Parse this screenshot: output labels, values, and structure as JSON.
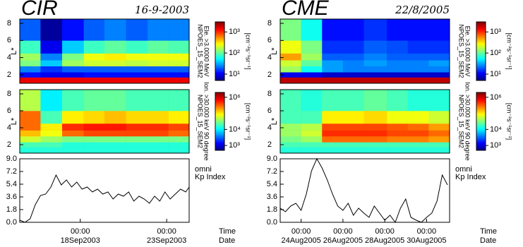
{
  "chart_data": [
    {
      "type": "heatmap",
      "title": "CIR",
      "subtitle": "16-9-2003",
      "ylabel": "L*",
      "colorbar_label": [
        "NPOES_15_SEM2",
        "Ele. >3.0000 MeV"
      ],
      "units": "[cm⁻²s⁻¹sr⁻¹]",
      "xbins": [
        14.5,
        15.7,
        16.95,
        18.2,
        19.4,
        20.65,
        21.9,
        23.1,
        24.3
      ],
      "ybins": [
        1,
        1.7,
        2.3,
        3,
        3.7,
        4.5,
        6,
        8.5
      ],
      "ylim": [
        1,
        8.5
      ],
      "yticks": [
        2,
        4,
        6,
        8
      ],
      "zlim": [
        5,
        3000
      ],
      "zscale": "log",
      "zticks": [
        {
          "value": 10,
          "label": "10¹"
        },
        {
          "value": 100,
          "label": "10²"
        },
        {
          "value": 1000,
          "label": "10³"
        }
      ],
      "z": [
        [
          1500,
          1500,
          1500,
          1500,
          1500,
          1500,
          1500,
          1500
        ],
        [
          12,
          10,
          10,
          12,
          12,
          12,
          12,
          12
        ],
        [
          25,
          15,
          20,
          20,
          20,
          20,
          20,
          20
        ],
        [
          120,
          40,
          150,
          200,
          200,
          180,
          200,
          200
        ],
        [
          150,
          25,
          120,
          250,
          300,
          250,
          250,
          250
        ],
        [
          80,
          10,
          40,
          80,
          100,
          80,
          100,
          90
        ],
        [
          20,
          6,
          12,
          20,
          25,
          20,
          25,
          25
        ]
      ]
    },
    {
      "type": "heatmap",
      "ylabel": "L*",
      "colorbar_label": [
        "NPOES_15_SEM2",
        "Ion. >30.000 keV 90 degree"
      ],
      "units": "[cm⁻²s⁻¹sr⁻¹]",
      "xbins": [
        14.5,
        15.7,
        16.95,
        18.2,
        19.4,
        20.65,
        21.9,
        23.1,
        24.3
      ],
      "ybins": [
        1,
        1.7,
        2.3,
        3,
        3.7,
        4.5,
        6,
        8.5
      ],
      "ylim": [
        1,
        8.5
      ],
      "yticks": [
        2,
        4,
        6,
        8
      ],
      "zlim": [
        500,
        2000000
      ],
      "zscale": "log",
      "zticks": [
        {
          "value": 1000,
          "label": "10³"
        },
        {
          "value": 10000,
          "label": "10⁴"
        },
        {
          "value": 1000000,
          "label": "10⁶"
        }
      ],
      "z": [
        [
          15000,
          15000,
          15000,
          15000,
          15000,
          15000,
          15000,
          15000
        ],
        [
          20000,
          20000,
          15000,
          15000,
          15000,
          15000,
          15000,
          15000
        ],
        [
          60000,
          40000,
          30000,
          30000,
          30000,
          30000,
          30000,
          30000
        ],
        [
          150000,
          80000,
          300000,
          400000,
          400000,
          400000,
          400000,
          300000
        ],
        [
          300000,
          100000,
          500000,
          600000,
          600000,
          500000,
          500000,
          400000
        ],
        [
          300000,
          20000,
          100000,
          120000,
          150000,
          120000,
          120000,
          100000
        ],
        [
          50000,
          10000,
          20000,
          25000,
          25000,
          20000,
          20000,
          20000
        ]
      ]
    },
    {
      "type": "line",
      "annotations": [
        "omni",
        "Kp Index"
      ],
      "xlabel": [
        "Time",
        "Date"
      ],
      "xtick_time": "00:00",
      "xlim": [
        14.5,
        24.3
      ],
      "xticks": [
        {
          "value": 18,
          "label": "18Sep2003"
        },
        {
          "value": 23,
          "label": "23Sep2003"
        }
      ],
      "ylim": [
        0,
        9
      ],
      "yticks": [
        {
          "value": 0,
          "label": "0.0"
        },
        {
          "value": 1.8,
          "label": "1.8"
        },
        {
          "value": 3.6,
          "label": "3.6"
        },
        {
          "value": 5.4,
          "label": "5.4"
        },
        {
          "value": 7.2,
          "label": "7.2"
        },
        {
          "value": 9,
          "label": "9.0"
        }
      ],
      "color": "#000000",
      "x": [
        14.5,
        14.8,
        15.1,
        15.4,
        15.7,
        16.0,
        16.3,
        16.6,
        16.9,
        17.2,
        17.5,
        17.8,
        18.1,
        18.4,
        18.7,
        19.0,
        19.3,
        19.6,
        19.9,
        20.2,
        20.5,
        20.8,
        21.1,
        21.4,
        21.7,
        22.0,
        22.3,
        22.6,
        22.9,
        23.2,
        23.5,
        23.8,
        24.1,
        24.3
      ],
      "values": [
        0.3,
        0.0,
        0.5,
        2.5,
        3.8,
        4.0,
        5.0,
        6.7,
        5.3,
        6.0,
        5.0,
        5.7,
        4.7,
        5.0,
        4.3,
        4.7,
        4.0,
        4.3,
        3.3,
        4.0,
        3.7,
        4.3,
        3.0,
        3.7,
        3.3,
        2.7,
        3.7,
        3.0,
        4.3,
        3.3,
        4.0,
        4.7,
        4.3,
        5.0
      ]
    },
    {
      "type": "heatmap",
      "title": "CME",
      "subtitle": "22/8/2005",
      "ylabel": "L*",
      "colorbar_label": [
        "NPOES_15_SEM2",
        "Ele. >3.0000 MeV"
      ],
      "units": "[cm⁻²s⁻¹sr⁻¹]",
      "xbins": [
        23,
        24,
        25,
        26,
        27,
        28.1,
        29.1,
        30.1,
        31.1
      ],
      "ybins": [
        1,
        1.7,
        2.3,
        3,
        3.7,
        4.5,
        6,
        8.5
      ],
      "ylim": [
        1,
        8.5
      ],
      "yticks": [
        2,
        4,
        6,
        8
      ],
      "zlim": [
        5,
        3000
      ],
      "zscale": "log",
      "zticks": [
        {
          "value": 10,
          "label": "10¹"
        },
        {
          "value": 100,
          "label": "10²"
        },
        {
          "value": 1000,
          "label": "10³"
        }
      ],
      "z": [
        [
          2000,
          2000,
          2000,
          2000,
          2000,
          2000,
          2000,
          2000
        ],
        [
          10,
          10,
          8,
          8,
          8,
          8,
          8,
          8
        ],
        [
          150,
          60,
          30,
          25,
          25,
          25,
          25,
          25
        ],
        [
          200,
          100,
          30,
          25,
          30,
          25,
          25,
          30
        ],
        [
          500,
          150,
          20,
          20,
          25,
          20,
          20,
          20
        ],
        [
          250,
          120,
          15,
          15,
          20,
          18,
          15,
          15
        ],
        [
          120,
          60,
          12,
          12,
          15,
          12,
          12,
          12
        ]
      ]
    },
    {
      "type": "heatmap",
      "ylabel": "L*",
      "colorbar_label": [
        "NPOES_15_SEM2",
        "Ion. >30.000 keV 90 degree"
      ],
      "units": "[cm⁻²s⁻¹sr⁻¹]",
      "xbins": [
        23,
        24,
        25,
        26,
        27,
        28.1,
        29.1,
        30.1,
        31.1
      ],
      "ybins": [
        1,
        1.7,
        2.3,
        3,
        3.7,
        4.5,
        6,
        8.5
      ],
      "ylim": [
        1,
        8.5
      ],
      "yticks": [
        2,
        4,
        6,
        8
      ],
      "zlim": [
        500,
        2000000
      ],
      "zscale": "log",
      "zticks": [
        {
          "value": 1000,
          "label": "10³"
        },
        {
          "value": 10000,
          "label": "10⁴"
        },
        {
          "value": 1000000,
          "label": "10⁶"
        }
      ],
      "z": [
        [
          15000,
          15000,
          15000,
          15000,
          15000,
          15000,
          15000,
          15000
        ],
        [
          20000,
          20000,
          20000,
          20000,
          20000,
          20000,
          20000,
          20000
        ],
        [
          30000,
          40000,
          300000,
          300000,
          300000,
          250000,
          250000,
          200000
        ],
        [
          40000,
          60000,
          500000,
          500000,
          500000,
          400000,
          400000,
          300000
        ],
        [
          40000,
          50000,
          400000,
          400000,
          400000,
          350000,
          300000,
          200000
        ],
        [
          20000,
          20000,
          100000,
          100000,
          120000,
          80000,
          80000,
          60000
        ],
        [
          20000,
          15000,
          20000,
          20000,
          25000,
          20000,
          15000,
          15000
        ]
      ]
    },
    {
      "type": "line",
      "annotations": [
        "omni",
        "Kp Index"
      ],
      "xlabel": [
        "Time",
        "Date"
      ],
      "xtick_time": "00:00",
      "xlim": [
        23,
        31.1
      ],
      "xticks": [
        {
          "value": 24,
          "label": "24Aug2005"
        },
        {
          "value": 26,
          "label": "26Aug2005"
        },
        {
          "value": 28,
          "label": "28Aug2005"
        },
        {
          "value": 30,
          "label": "30Aug2005"
        }
      ],
      "ylim": [
        0,
        9
      ],
      "yticks": [
        {
          "value": 0,
          "label": "0.0"
        },
        {
          "value": 1.8,
          "label": "1.8"
        },
        {
          "value": 3.6,
          "label": "3.6"
        },
        {
          "value": 5.4,
          "label": "5.4"
        },
        {
          "value": 7.2,
          "label": "7.2"
        },
        {
          "value": 9,
          "label": "9.0"
        }
      ],
      "color": "#000000",
      "x": [
        23.0,
        23.25,
        23.5,
        23.75,
        24.0,
        24.25,
        24.5,
        24.75,
        25.0,
        25.25,
        25.5,
        25.75,
        26.0,
        26.25,
        26.5,
        26.75,
        27.0,
        27.25,
        27.5,
        27.75,
        28.0,
        28.25,
        28.5,
        28.75,
        29.0,
        29.25,
        29.5,
        29.75,
        30.0,
        30.25,
        30.5,
        30.75,
        31.0
      ],
      "values": [
        2.0,
        1.5,
        2.3,
        2.7,
        1.7,
        4.0,
        7.3,
        9.0,
        7.7,
        6.0,
        4.0,
        2.3,
        1.7,
        2.7,
        1.0,
        2.0,
        1.3,
        0.7,
        2.3,
        1.3,
        0.3,
        1.0,
        0.0,
        2.0,
        3.3,
        0.7,
        0.3,
        0.0,
        0.7,
        1.3,
        3.0,
        6.7,
        5.3
      ]
    }
  ]
}
